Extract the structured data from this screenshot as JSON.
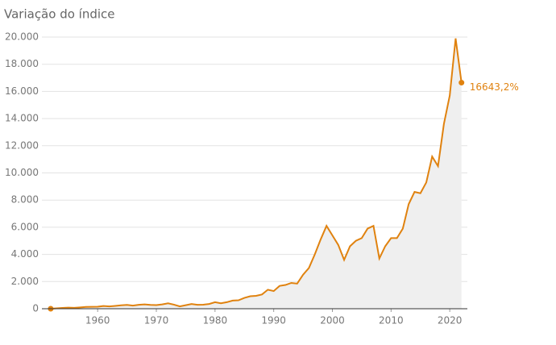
{
  "chart_data": {
    "type": "line",
    "title": "Variação do índice",
    "x": [
      1952,
      1953,
      1954,
      1955,
      1956,
      1957,
      1958,
      1959,
      1960,
      1961,
      1962,
      1963,
      1964,
      1965,
      1966,
      1967,
      1968,
      1969,
      1970,
      1971,
      1972,
      1973,
      1974,
      1975,
      1976,
      1977,
      1978,
      1979,
      1980,
      1981,
      1982,
      1983,
      1984,
      1985,
      1986,
      1987,
      1988,
      1989,
      1990,
      1991,
      1992,
      1993,
      1994,
      1995,
      1996,
      1997,
      1998,
      1999,
      2000,
      2001,
      2002,
      2003,
      2004,
      2005,
      2006,
      2007,
      2008,
      2009,
      2010,
      2011,
      2012,
      2013,
      2014,
      2015,
      2016,
      2017,
      2018,
      2019,
      2020,
      2021,
      2022
    ],
    "series": [
      {
        "color": "#e0820f",
        "area_color": "#efefef",
        "values": [
          0,
          30,
          60,
          80,
          70,
          100,
          130,
          140,
          150,
          200,
          170,
          210,
          250,
          280,
          230,
          290,
          320,
          280,
          270,
          320,
          400,
          300,
          170,
          260,
          350,
          290,
          300,
          350,
          480,
          400,
          480,
          600,
          620,
          800,
          920,
          950,
          1050,
          1400,
          1300,
          1680,
          1750,
          1900,
          1850,
          2500,
          3000,
          4000,
          5100,
          6100,
          5400,
          4700,
          3600,
          4600,
          5000,
          5200,
          5900,
          6100,
          3700,
          4600,
          5200,
          5200,
          5900,
          7700,
          8600,
          8500,
          9300,
          11200,
          10500,
          13600,
          15700,
          19900,
          16643.2
        ]
      }
    ],
    "end_label": "16643,2%",
    "xlim": [
      1950.5,
      2023
    ],
    "xticks": [
      1960,
      1970,
      1980,
      1990,
      2000,
      2010,
      2020
    ],
    "ylim": [
      0,
      20000
    ],
    "yticks": [
      0,
      {
        "value": 2000,
        "label": "2.000"
      },
      {
        "value": 4000,
        "label": "4.000"
      },
      {
        "value": 6000,
        "label": "6.000"
      },
      {
        "value": 8000,
        "label": "8.000"
      },
      {
        "value": 10000,
        "label": "10.000"
      },
      {
        "value": 12000,
        "label": "12.000"
      },
      {
        "value": 14000,
        "label": "14.000"
      },
      {
        "value": 16000,
        "label": "16.000"
      },
      {
        "value": 18000,
        "label": "18.000"
      },
      {
        "value": 20000,
        "label": "20.000"
      }
    ],
    "grid": true
  }
}
